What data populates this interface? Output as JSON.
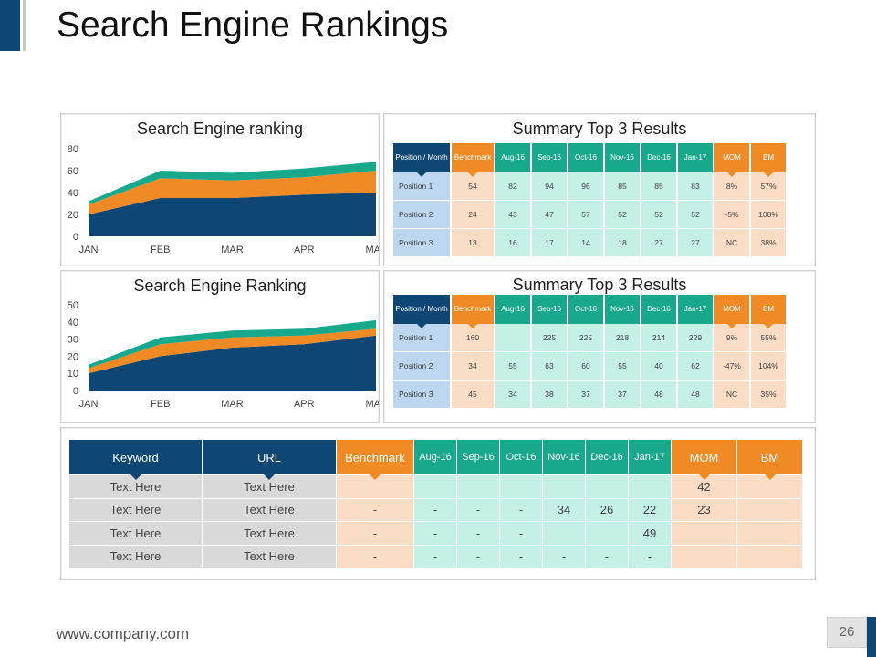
{
  "title": "Search Engine Rankings",
  "footer": {
    "url": "www.company.com",
    "page": "26"
  },
  "colors": {
    "navy": "#0e4674",
    "orange": "#ef8a25",
    "teal": "#18a98c",
    "peach": "#fbdcc4",
    "mint": "#c4f0e6",
    "lightblue": "#bcd7ef"
  },
  "chart_data": [
    {
      "type": "area",
      "stacked": true,
      "title": "Search Engine ranking",
      "categories": [
        "JAN",
        "FEB",
        "MAR",
        "APR",
        "MAY"
      ],
      "ylim": [
        0,
        80
      ],
      "yticks": [
        0,
        20,
        40,
        60,
        80
      ],
      "grid": false,
      "legend": "none",
      "series": [
        {
          "values": [
            20,
            35,
            35,
            38,
            40
          ],
          "color": "#0e4674"
        },
        {
          "values": [
            9,
            18,
            16,
            16,
            20
          ],
          "color": "#ef8a25"
        },
        {
          "values": [
            3,
            7,
            7,
            8,
            8
          ],
          "color": "#18a98c"
        }
      ]
    },
    {
      "type": "area",
      "stacked": true,
      "title": "Search Engine Ranking",
      "categories": [
        "JAN",
        "FEB",
        "MAR",
        "APR",
        "MAY"
      ],
      "ylim": [
        0,
        50
      ],
      "yticks": [
        0,
        10,
        20,
        30,
        40,
        50
      ],
      "grid": false,
      "legend": "none",
      "series": [
        {
          "values": [
            10,
            20,
            25,
            27,
            32
          ],
          "color": "#0e4674"
        },
        {
          "values": [
            3,
            7,
            6,
            5,
            4
          ],
          "color": "#ef8a25"
        },
        {
          "values": [
            2,
            4,
            4,
            4,
            5
          ],
          "color": "#18a98c"
        }
      ]
    },
    {
      "type": "table",
      "title": "Summary Top 3 Results",
      "headers": [
        "Position / Month",
        "Benchmark",
        "Aug-16",
        "Sep-16",
        "Oct-16",
        "Nov-16",
        "Dec-16",
        "Jan-17",
        "MOM",
        "BM"
      ],
      "rows": [
        [
          "Position 1",
          "54",
          "82",
          "94",
          "96",
          "85",
          "85",
          "83",
          "8%",
          "57%"
        ],
        [
          "Position 2",
          "24",
          "43",
          "47",
          "57",
          "52",
          "52",
          "52",
          "-5%",
          "108%"
        ],
        [
          "Position 3",
          "13",
          "16",
          "17",
          "14",
          "18",
          "27",
          "27",
          "NC",
          "38%"
        ]
      ]
    },
    {
      "type": "table",
      "title": "Summary Top 3 Results",
      "headers": [
        "Position / Month",
        "Benchmark",
        "Aug-16",
        "Sep-16",
        "Oct-16",
        "Nov-16",
        "Dec-16",
        "Jan-17",
        "MOM",
        "BM"
      ],
      "rows": [
        [
          "Position 1",
          "160",
          "",
          "225",
          "225",
          "218",
          "214",
          "229",
          "9%",
          "55%"
        ],
        [
          "Position 2",
          "34",
          "55",
          "63",
          "60",
          "55",
          "40",
          "62",
          "-47%",
          "104%"
        ],
        [
          "Position 3",
          "45",
          "34",
          "38",
          "37",
          "37",
          "48",
          "48",
          "NC",
          "35%"
        ]
      ]
    },
    {
      "type": "table",
      "headers": [
        "Keyword",
        "URL",
        "Benchmark",
        "Aug-16",
        "Sep-16",
        "Oct-16",
        "Nov-16",
        "Dec-16",
        "Jan-17",
        "MOM",
        "BM"
      ],
      "rows": [
        [
          "Text Here",
          "Text Here",
          "",
          "",
          "",
          "",
          "",
          "",
          "",
          "42",
          ""
        ],
        [
          "Text Here",
          "Text Here",
          "-",
          "-",
          "-",
          "-",
          "34",
          "26",
          "22",
          "23",
          ""
        ],
        [
          "Text Here",
          "Text Here",
          "-",
          "-",
          "-",
          "-",
          "",
          "",
          "49",
          "",
          ""
        ],
        [
          "Text Here",
          "Text Here",
          "-",
          "-",
          "-",
          "-",
          "-",
          "-",
          "-",
          "",
          ""
        ]
      ]
    }
  ]
}
